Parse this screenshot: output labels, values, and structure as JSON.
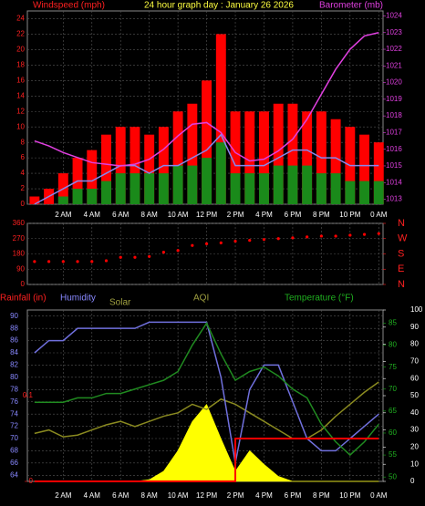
{
  "chart_data": [
    {
      "type": "combo",
      "title": "24 hour graph day : January 26 2026",
      "labels": [
        {
          "text": "Windspeed (mph)",
          "color": "#ff2020"
        },
        {
          "text": "Barometer (mb)",
          "color": "#e040e0"
        }
      ],
      "x": [
        0,
        1,
        2,
        3,
        4,
        5,
        6,
        7,
        8,
        9,
        10,
        11,
        12,
        13,
        14,
        15,
        16,
        17,
        18,
        19,
        20,
        21,
        22,
        23,
        24
      ],
      "xlim": [
        -0.5,
        24.3
      ],
      "xticks": [
        {
          "value": 2,
          "label": "2 AM"
        },
        {
          "value": 4,
          "label": "4 AM"
        },
        {
          "value": 6,
          "label": "6 AM"
        },
        {
          "value": 8,
          "label": "8 AM"
        },
        {
          "value": 10,
          "label": "10 AM"
        },
        {
          "value": 12,
          "label": "12 PM"
        },
        {
          "value": 14,
          "label": "2 PM"
        },
        {
          "value": 16,
          "label": "4 PM"
        },
        {
          "value": 18,
          "label": "6 PM"
        },
        {
          "value": 20,
          "label": "8 PM"
        },
        {
          "value": 22,
          "label": "10 PM"
        },
        {
          "value": 24,
          "label": "0 AM"
        }
      ],
      "ylim": [
        0,
        25
      ],
      "yticks": [
        0,
        2,
        4,
        6,
        8,
        10,
        12,
        14,
        16,
        18,
        20,
        22,
        24
      ],
      "ycolor": "#ff2020",
      "y2lim": [
        1012.7,
        1024.3
      ],
      "y2ticks": [
        1013,
        1014,
        1015,
        1016,
        1017,
        1018,
        1019,
        1020,
        1021,
        1022,
        1023,
        1024
      ],
      "y2color": "#e040e0",
      "grid": true,
      "series": [
        {
          "style": "bar",
          "axis": "y",
          "color": "#ff0000",
          "values": [
            1,
            2,
            4,
            6,
            7,
            9,
            10,
            10,
            9,
            10,
            12,
            13,
            16,
            22,
            12,
            12,
            12,
            13,
            13,
            12,
            12,
            11,
            10,
            9,
            8
          ]
        },
        {
          "style": "bar",
          "axis": "y",
          "color": "#1a8a1a",
          "values": [
            0,
            0,
            1,
            2,
            2,
            3,
            4,
            4,
            4,
            4,
            5,
            5,
            6,
            8,
            4,
            4,
            4,
            5,
            5,
            5,
            4,
            4,
            3,
            3,
            3
          ]
        },
        {
          "style": "line",
          "axis": "y",
          "color": "#8888ee",
          "values": [
            0,
            1,
            2,
            3,
            3,
            4,
            5,
            5,
            4,
            5,
            5,
            6,
            7,
            9,
            5,
            5,
            5,
            6,
            7,
            7,
            6,
            6,
            5,
            5,
            5
          ]
        },
        {
          "style": "line",
          "axis": "y2",
          "color": "#e040e0",
          "values": [
            1016.5,
            1016.2,
            1015.8,
            1015.5,
            1015.2,
            1015.1,
            1015.0,
            1015.1,
            1015.4,
            1016.0,
            1016.8,
            1017.5,
            1017.6,
            1017.0,
            1015.8,
            1015.3,
            1015.4,
            1015.9,
            1016.6,
            1017.8,
            1019.3,
            1020.8,
            1022.0,
            1022.8,
            1023.0
          ]
        }
      ]
    },
    {
      "type": "combo",
      "x": [
        0,
        1,
        2,
        3,
        4,
        5,
        6,
        7,
        8,
        9,
        10,
        11,
        12,
        13,
        14,
        15,
        16,
        17,
        18,
        19,
        20,
        21,
        22,
        23,
        24
      ],
      "xlim": [
        -0.5,
        24.3
      ],
      "ylim": [
        0,
        360
      ],
      "yticks": [
        0,
        90,
        180,
        270,
        360
      ],
      "ycolor": "#ff2020",
      "y2lim": [
        0,
        360
      ],
      "y2ticks": [
        {
          "value": 0,
          "label": "N"
        },
        {
          "value": 90,
          "label": "E"
        },
        {
          "value": 180,
          "label": "S"
        },
        {
          "value": 270,
          "label": "W"
        },
        {
          "value": 360,
          "label": "N"
        }
      ],
      "y2color": "#ff2020",
      "grid": true,
      "series": [
        {
          "style": "dots",
          "axis": "y",
          "color": "#ff0000",
          "values": [
            135,
            135,
            135,
            135,
            135,
            140,
            160,
            160,
            165,
            190,
            200,
            230,
            240,
            245,
            255,
            260,
            265,
            270,
            275,
            280,
            285,
            285,
            290,
            295,
            300
          ]
        }
      ]
    },
    {
      "type": "combo",
      "labels": [
        {
          "text": "Rainfall (in)",
          "color": "#ff2020"
        },
        {
          "text": "Humidity",
          "color": "#8888ff"
        },
        {
          "text": "Solar",
          "color": "#a0a040"
        },
        {
          "text": "AQI",
          "color": "#a0a040"
        },
        {
          "text": "Temperature (°F)",
          "color": "#20b020"
        }
      ],
      "x": [
        0,
        1,
        2,
        3,
        4,
        5,
        6,
        7,
        8,
        9,
        10,
        11,
        12,
        13,
        14,
        15,
        16,
        17,
        18,
        19,
        20,
        21,
        22,
        23,
        24
      ],
      "xlim": [
        -0.5,
        24.3
      ],
      "xticks": [
        {
          "value": 2,
          "label": "2 AM"
        },
        {
          "value": 4,
          "label": "4 AM"
        },
        {
          "value": 6,
          "label": "6 AM"
        },
        {
          "value": 8,
          "label": "8 AM"
        },
        {
          "value": 10,
          "label": "10 AM"
        },
        {
          "value": 12,
          "label": "12 PM"
        },
        {
          "value": 14,
          "label": "2 PM"
        },
        {
          "value": 16,
          "label": "4 PM"
        },
        {
          "value": 18,
          "label": "6 PM"
        },
        {
          "value": 20,
          "label": "8 PM"
        },
        {
          "value": 22,
          "label": "10 PM"
        },
        {
          "value": 24,
          "label": "0 AM"
        }
      ],
      "ylim": [
        63,
        91
      ],
      "yticks": [
        64,
        66,
        68,
        70,
        72,
        74,
        76,
        78,
        80,
        82,
        84,
        86,
        88,
        90
      ],
      "ycolor": "#8888ff",
      "y2lim": [
        49,
        88
      ],
      "y2ticks": [
        50,
        55,
        60,
        65,
        70,
        75,
        80,
        85
      ],
      "y2color": "#20b020",
      "y3lim": [
        0,
        0.2
      ],
      "y3ticks": [
        0,
        0.1
      ],
      "y3color": "#ff2020",
      "y4lim": [
        0,
        100
      ],
      "y4ticks": [
        0,
        10,
        20,
        30,
        40,
        50,
        60,
        70,
        80,
        90,
        100
      ],
      "y4color": "#ffffff",
      "grid": true,
      "series": [
        {
          "style": "area",
          "axis": "y4",
          "color": "#ffff00",
          "values": [
            0,
            0,
            0,
            0,
            0,
            0,
            0,
            0,
            1,
            6,
            18,
            35,
            45,
            25,
            6,
            18,
            10,
            3,
            0,
            0,
            0,
            0,
            0,
            0,
            0
          ]
        },
        {
          "style": "line",
          "axis": "y4",
          "color": "#8a8a20",
          "values": [
            28,
            30,
            26,
            27,
            30,
            33,
            35,
            32,
            35,
            38,
            40,
            45,
            42,
            48,
            45,
            40,
            35,
            30,
            25,
            25,
            30,
            38,
            45,
            52,
            58
          ]
        },
        {
          "style": "line",
          "axis": "y",
          "color": "#7070dd",
          "values": [
            84,
            86,
            86,
            88,
            88,
            88,
            88,
            88,
            89,
            89,
            89,
            89,
            89,
            80,
            66,
            78,
            82,
            82,
            76,
            70,
            68,
            68,
            70,
            72,
            74
          ]
        },
        {
          "style": "line",
          "axis": "y2",
          "color": "#208a20",
          "values": [
            67,
            67,
            67,
            68,
            68,
            69,
            69,
            70,
            71,
            72,
            74,
            80,
            85,
            78,
            72,
            74,
            75,
            73,
            70,
            68,
            62,
            58,
            55,
            58,
            62
          ]
        },
        {
          "style": "step",
          "axis": "y3",
          "color": "#ff0000",
          "values": [
            0,
            0,
            0,
            0,
            0,
            0,
            0,
            0,
            0,
            0,
            0,
            0,
            0,
            0,
            0.05,
            0.05,
            0.05,
            0.05,
            0.05,
            0.05,
            0.05,
            0.05,
            0.05,
            0.05,
            0.05
          ]
        }
      ]
    }
  ]
}
